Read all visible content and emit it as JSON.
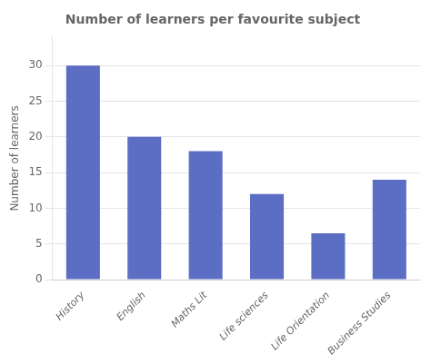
{
  "chart_data": {
    "type": "bar",
    "title": "Number of learners per favourite subject",
    "categories": [
      "History",
      "English",
      "Maths Lit",
      "Life sciences",
      "Life Orientation",
      "Business Studies"
    ],
    "values": [
      30,
      20,
      18,
      12,
      6.5,
      14
    ],
    "color": "#5B6EC4",
    "ylabel": "Number of learners",
    "ylim": [
      0,
      34
    ],
    "yticks": [
      0,
      5,
      10,
      15,
      20,
      25,
      30
    ],
    "grid": true
  }
}
